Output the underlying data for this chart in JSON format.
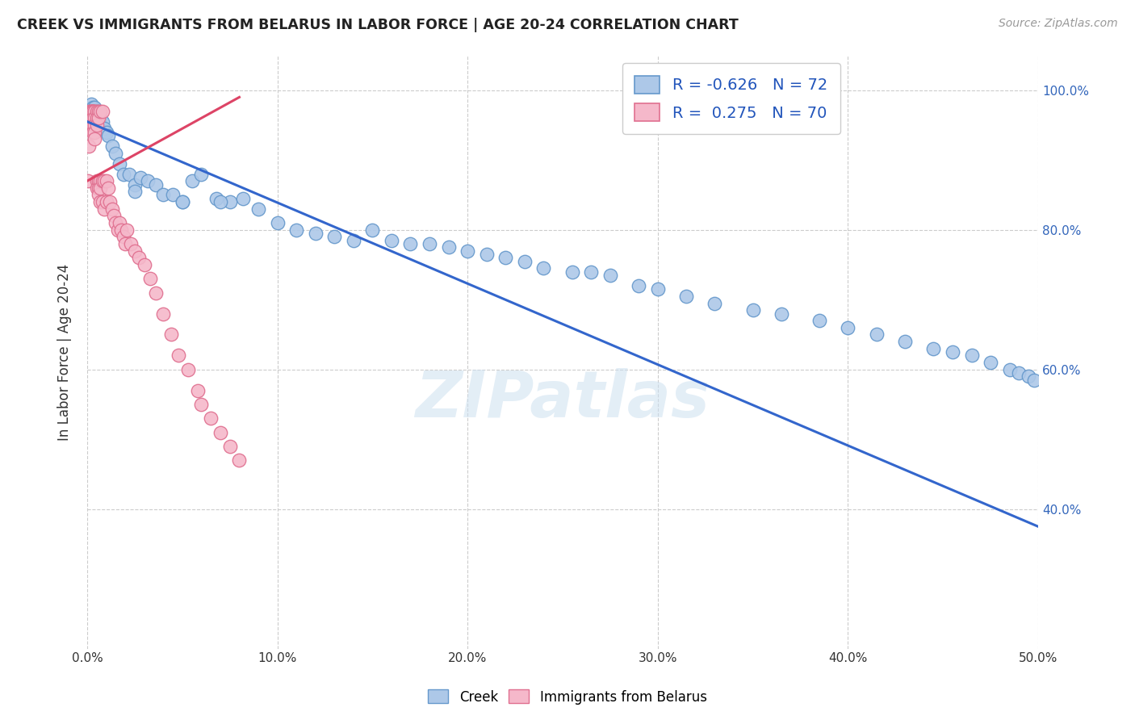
{
  "title": "CREEK VS IMMIGRANTS FROM BELARUS IN LABOR FORCE | AGE 20-24 CORRELATION CHART",
  "source": "Source: ZipAtlas.com",
  "ylabel": "In Labor Force | Age 20-24",
  "xlim": [
    0.0,
    0.5
  ],
  "ylim": [
    0.2,
    1.05
  ],
  "x_ticks": [
    0.0,
    0.1,
    0.2,
    0.3,
    0.4,
    0.5
  ],
  "x_tick_labels": [
    "0.0%",
    "10.0%",
    "20.0%",
    "30.0%",
    "40.0%",
    "50.0%"
  ],
  "y_ticks": [
    0.4,
    0.6,
    0.8,
    1.0
  ],
  "y_tick_labels": [
    "40.0%",
    "60.0%",
    "80.0%",
    "100.0%"
  ],
  "creek_color": "#adc8e8",
  "creek_edge": "#6699cc",
  "belarus_color": "#f5b8ca",
  "belarus_edge": "#e07090",
  "creek_R": -0.626,
  "creek_N": 72,
  "belarus_R": 0.275,
  "belarus_N": 70,
  "trend_creek_color": "#3366cc",
  "trend_belarus_color": "#dd4466",
  "legend_R_color": "#2255bb",
  "watermark": "ZIPatlas",
  "background_color": "#ffffff",
  "grid_color": "#cccccc",
  "creek_x": [
    0.001,
    0.002,
    0.002,
    0.003,
    0.003,
    0.004,
    0.004,
    0.005,
    0.005,
    0.006,
    0.007,
    0.008,
    0.009,
    0.01,
    0.011,
    0.013,
    0.015,
    0.017,
    0.019,
    0.022,
    0.025,
    0.028,
    0.032,
    0.036,
    0.04,
    0.045,
    0.05,
    0.055,
    0.06,
    0.068,
    0.075,
    0.082,
    0.09,
    0.1,
    0.11,
    0.12,
    0.13,
    0.14,
    0.15,
    0.16,
    0.17,
    0.18,
    0.19,
    0.2,
    0.21,
    0.22,
    0.23,
    0.24,
    0.255,
    0.265,
    0.275,
    0.29,
    0.3,
    0.315,
    0.33,
    0.35,
    0.365,
    0.385,
    0.4,
    0.415,
    0.43,
    0.445,
    0.455,
    0.465,
    0.475,
    0.485,
    0.49,
    0.495,
    0.498,
    0.05,
    0.025,
    0.07
  ],
  "creek_y": [
    0.97,
    0.98,
    0.97,
    0.975,
    0.96,
    0.965,
    0.975,
    0.97,
    0.955,
    0.965,
    0.96,
    0.955,
    0.945,
    0.94,
    0.935,
    0.92,
    0.91,
    0.895,
    0.88,
    0.88,
    0.865,
    0.875,
    0.87,
    0.865,
    0.85,
    0.85,
    0.84,
    0.87,
    0.88,
    0.845,
    0.84,
    0.845,
    0.83,
    0.81,
    0.8,
    0.795,
    0.79,
    0.785,
    0.8,
    0.785,
    0.78,
    0.78,
    0.775,
    0.77,
    0.765,
    0.76,
    0.755,
    0.745,
    0.74,
    0.74,
    0.735,
    0.72,
    0.715,
    0.705,
    0.695,
    0.685,
    0.68,
    0.67,
    0.66,
    0.65,
    0.64,
    0.63,
    0.625,
    0.62,
    0.61,
    0.6,
    0.595,
    0.59,
    0.585,
    0.84,
    0.855,
    0.84
  ],
  "belarus_x": [
    0.0005,
    0.001,
    0.001,
    0.0015,
    0.002,
    0.002,
    0.002,
    0.002,
    0.0025,
    0.003,
    0.003,
    0.003,
    0.003,
    0.003,
    0.003,
    0.003,
    0.004,
    0.004,
    0.004,
    0.004,
    0.004,
    0.004,
    0.005,
    0.005,
    0.005,
    0.005,
    0.005,
    0.006,
    0.006,
    0.006,
    0.006,
    0.006,
    0.007,
    0.007,
    0.007,
    0.007,
    0.008,
    0.008,
    0.008,
    0.009,
    0.009,
    0.01,
    0.01,
    0.011,
    0.012,
    0.013,
    0.014,
    0.015,
    0.016,
    0.017,
    0.018,
    0.019,
    0.02,
    0.021,
    0.023,
    0.025,
    0.027,
    0.03,
    0.033,
    0.036,
    0.04,
    0.044,
    0.048,
    0.053,
    0.058,
    0.06,
    0.065,
    0.07,
    0.075,
    0.08
  ],
  "belarus_y": [
    0.87,
    0.97,
    0.92,
    0.97,
    0.97,
    0.96,
    0.95,
    0.97,
    0.97,
    0.97,
    0.97,
    0.97,
    0.97,
    0.96,
    0.95,
    0.94,
    0.97,
    0.97,
    0.96,
    0.95,
    0.94,
    0.93,
    0.97,
    0.96,
    0.95,
    0.87,
    0.86,
    0.97,
    0.96,
    0.87,
    0.86,
    0.85,
    0.97,
    0.87,
    0.86,
    0.84,
    0.97,
    0.87,
    0.84,
    0.87,
    0.83,
    0.87,
    0.84,
    0.86,
    0.84,
    0.83,
    0.82,
    0.81,
    0.8,
    0.81,
    0.8,
    0.79,
    0.78,
    0.8,
    0.78,
    0.77,
    0.76,
    0.75,
    0.73,
    0.71,
    0.68,
    0.65,
    0.62,
    0.6,
    0.57,
    0.55,
    0.53,
    0.51,
    0.49,
    0.47
  ],
  "creek_trend_x": [
    0.0,
    0.5
  ],
  "creek_trend_y": [
    0.955,
    0.375
  ],
  "belarus_trend_x": [
    0.0,
    0.08
  ],
  "belarus_trend_y": [
    0.87,
    0.99
  ]
}
